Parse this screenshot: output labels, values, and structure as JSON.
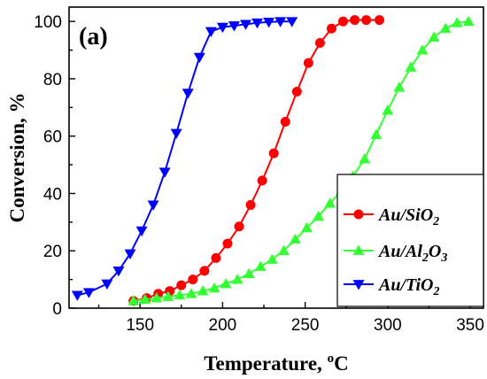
{
  "chart_data": {
    "type": "line",
    "panel_label": "(a)",
    "xlabel": "Temperature, ",
    "xlabel_unit": "oC",
    "ylabel": "Conversion, %",
    "xlim": [
      107,
      358
    ],
    "ylim": [
      0,
      105
    ],
    "x_ticks": [
      150,
      200,
      250,
      300,
      350
    ],
    "y_ticks": [
      0,
      20,
      40,
      60,
      80,
      100
    ],
    "legend_position": "bottom-right",
    "series": [
      {
        "name": "Au/SiO2",
        "name_parts": [
          "Au/SiO",
          "2",
          ""
        ],
        "color": "#ff0000",
        "marker": "circle",
        "x": [
          146,
          154,
          161,
          168,
          175,
          182,
          189,
          196,
          203,
          210,
          217,
          224,
          231,
          238,
          245,
          252,
          259,
          266,
          273,
          280,
          287,
          295
        ],
        "y": [
          2.5,
          3.5,
          5.0,
          6.0,
          8.0,
          10.0,
          13.0,
          17.5,
          22.5,
          28.5,
          36.0,
          44.5,
          54.0,
          65.0,
          75.5,
          85.5,
          92.5,
          97.5,
          100.0,
          100.5,
          100.5,
          100.5
        ]
      },
      {
        "name": "Au/Al2O3",
        "name_parts": [
          "Au/Al",
          "2",
          "O",
          "3"
        ],
        "color": "#33ff33",
        "marker": "triangle-up",
        "x": [
          146,
          153,
          160,
          167,
          174,
          181,
          188,
          195,
          202,
          209,
          216,
          223,
          230,
          237,
          244,
          251,
          258,
          265,
          272,
          279,
          286,
          293,
          300,
          307,
          314,
          321,
          328,
          335,
          342,
          349
        ],
        "y": [
          2.5,
          3.0,
          3.5,
          4.0,
          4.5,
          5.0,
          6.0,
          7.0,
          8.5,
          10.0,
          12.0,
          14.5,
          17.0,
          20.0,
          24.0,
          28.0,
          32.0,
          36.5,
          41.0,
          46.0,
          52.0,
          60.5,
          69.0,
          77.0,
          84.0,
          90.0,
          94.5,
          97.5,
          99.5,
          100.0
        ]
      },
      {
        "name": "Au/TiO2",
        "name_parts": [
          "Au/TiO",
          "2",
          ""
        ],
        "color": "#0000ff",
        "marker": "triangle-down",
        "x": [
          112,
          119,
          130,
          137,
          144,
          151,
          158,
          165,
          172,
          179,
          186,
          193,
          200,
          207,
          214,
          221,
          228,
          235,
          242
        ],
        "y": [
          4.5,
          5.5,
          8.5,
          13.0,
          19.0,
          27.0,
          36.0,
          47.5,
          61.0,
          75.0,
          87.5,
          96.5,
          98.0,
          98.5,
          99.0,
          99.5,
          99.8,
          100.0,
          100.0
        ]
      }
    ]
  }
}
